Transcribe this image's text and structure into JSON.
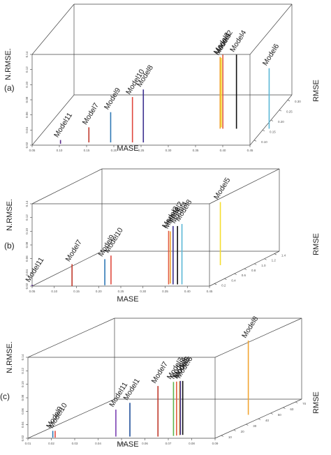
{
  "chart_data": [
    {
      "type": "3d-stem",
      "panel_label": "(a)",
      "xlabel": "MASE",
      "ylabel": "N.RMSE.",
      "zlabel": "RMSE",
      "x_ticks": [
        "0.05",
        "0.10",
        "0.15",
        "0.20",
        "0.25",
        "0.30",
        "0.35",
        "0.40",
        "0.45"
      ],
      "y_ticks": [
        "0.02",
        "0.04",
        "0.06",
        "0.08",
        "0.10",
        "0.12",
        "0.14"
      ],
      "z_ticks": [
        "0.10",
        "0.15",
        "0.20",
        "0.25",
        "0.30"
      ],
      "xlim": [
        0.05,
        0.45
      ],
      "ylim": [
        0.02,
        0.14
      ],
      "zlim": [
        0.08,
        0.3
      ],
      "models": [
        {
          "label": "Model11",
          "mase": 0.1,
          "nrmse": 0.025,
          "rmse": 0.09,
          "color": "#5b2c8a"
        },
        {
          "label": "Model7",
          "mase": 0.15,
          "nrmse": 0.04,
          "rmse": 0.1,
          "color": "#c0392b"
        },
        {
          "label": "Model9",
          "mase": 0.19,
          "nrmse": 0.06,
          "rmse": 0.1,
          "color": "#2e78b5"
        },
        {
          "label": "Model10",
          "mase": 0.23,
          "nrmse": 0.08,
          "rmse": 0.1,
          "color": "#e0483e"
        },
        {
          "label": "Model8",
          "mase": 0.25,
          "nrmse": 0.09,
          "rmse": 0.1,
          "color": "#3b2f8f"
        },
        {
          "label": "Model3",
          "mase": 0.37,
          "nrmse": 0.115,
          "rmse": 0.2,
          "color": "#f2a531"
        },
        {
          "label": "Model2",
          "mase": 0.375,
          "nrmse": 0.118,
          "rmse": 0.2,
          "color": "#e25b3d"
        },
        {
          "label": "Model5",
          "mase": 0.37,
          "nrmse": 0.112,
          "rmse": 0.21,
          "color": "#f5dd2e"
        },
        {
          "label": "Model4",
          "mase": 0.4,
          "nrmse": 0.118,
          "rmse": 0.2,
          "color": "#111111"
        },
        {
          "label": "Model6",
          "mase": 0.46,
          "nrmse": 0.1,
          "rmse": 0.2,
          "color": "#5bb7d6"
        }
      ]
    },
    {
      "type": "3d-stem",
      "panel_label": "(b)",
      "xlabel": "MASE",
      "ylabel": "N.RMSE.",
      "zlabel": "RMSE",
      "x_ticks": [
        "0.05",
        "0.10",
        "0.15",
        "0.20",
        "0.25",
        "0.30",
        "0.35",
        "0.40",
        "0.45"
      ],
      "y_ticks": [
        "0.02",
        "0.04",
        "0.06",
        "0.08",
        "0.10",
        "0.12",
        "0.14"
      ],
      "z_ticks": [
        "0.2",
        "0.4",
        "0.6",
        "0.8",
        "1.0",
        "1.2",
        "1.4"
      ],
      "xlim": [
        0.05,
        0.45
      ],
      "ylim": [
        0.02,
        0.14
      ],
      "zlim": [
        0.2,
        1.4
      ],
      "models": [
        {
          "label": "Model11",
          "mase": 0.05,
          "nrmse": 0.022,
          "rmse": 0.2,
          "color": "#5b2c8a"
        },
        {
          "label": "Model7",
          "mase": 0.14,
          "nrmse": 0.052,
          "rmse": 0.2,
          "color": "#c0392b"
        },
        {
          "label": "Model9",
          "mase": 0.21,
          "nrmse": 0.058,
          "rmse": 0.25,
          "color": "#2e78b5"
        },
        {
          "label": "Model10",
          "mase": 0.22,
          "nrmse": 0.062,
          "rmse": 0.3,
          "color": "#e0483e"
        },
        {
          "label": "Model3",
          "mase": 0.35,
          "nrmse": 0.098,
          "rmse": 0.3,
          "color": "#e25b3d"
        },
        {
          "label": "Model6",
          "mase": 0.35,
          "nrmse": 0.096,
          "rmse": 0.35,
          "color": "#f2a531"
        },
        {
          "label": "Model2",
          "mase": 0.36,
          "nrmse": 0.105,
          "rmse": 0.3,
          "color": "#3b2f8f"
        },
        {
          "label": "Model4",
          "mase": 0.37,
          "nrmse": 0.105,
          "rmse": 0.3,
          "color": "#111111"
        },
        {
          "label": "Model8",
          "mase": 0.38,
          "nrmse": 0.108,
          "rmse": 0.3,
          "color": "#5bb7d6"
        },
        {
          "label": "Model5",
          "mase": 0.38,
          "nrmse": 0.112,
          "rmse": 1.4,
          "color": "#f5dd2e"
        }
      ]
    },
    {
      "type": "3d-stem",
      "panel_label": "(c)",
      "xlabel": "MASE",
      "ylabel": "N.RMSE.",
      "zlabel": "RMSE",
      "x_ticks": [
        "0.01",
        "0.02",
        "0.03",
        "0.04",
        "0.05",
        "0.06",
        "0.07",
        "0.08",
        "0.09"
      ],
      "y_ticks": [
        "0.02",
        "0.04",
        "0.06",
        "0.08",
        "0.10",
        "0.12",
        "0.14"
      ],
      "z_ticks": [
        "10",
        "20",
        "30",
        "40",
        "50",
        "60",
        "70"
      ],
      "xlim": [
        0.01,
        0.09
      ],
      "ylim": [
        0.02,
        0.14
      ],
      "zlim": [
        0,
        70
      ],
      "models": [
        {
          "label": "Model10",
          "mase": 0.021,
          "nrmse": 0.03,
          "rmse": 2,
          "color": "#e0483e"
        },
        {
          "label": "Model9",
          "mase": 0.02,
          "nrmse": 0.03,
          "rmse": 2,
          "color": "#2e78b5"
        },
        {
          "label": "Model11",
          "mase": 0.046,
          "nrmse": 0.06,
          "rmse": 5,
          "color": "#7b3fb3"
        },
        {
          "label": "Model1",
          "mase": 0.052,
          "nrmse": 0.07,
          "rmse": 5,
          "color": "#1f4e9a"
        },
        {
          "label": "Model7",
          "mase": 0.064,
          "nrmse": 0.095,
          "rmse": 5,
          "color": "#c0392b"
        },
        {
          "label": "Model3",
          "mase": 0.07,
          "nrmse": 0.1,
          "rmse": 7,
          "color": "#5fb34a"
        },
        {
          "label": "Model4",
          "mase": 0.071,
          "nrmse": 0.1,
          "rmse": 8,
          "color": "#e25b3d"
        },
        {
          "label": "Model2",
          "mase": 0.072,
          "nrmse": 0.1,
          "rmse": 9,
          "color": "#f2a531"
        },
        {
          "label": "Model5",
          "mase": 0.072,
          "nrmse": 0.1,
          "rmse": 10,
          "color": "#3b2f8f"
        },
        {
          "label": "Model6",
          "mase": 0.073,
          "nrmse": 0.1,
          "rmse": 10,
          "color": "#111111"
        },
        {
          "label": "Model8",
          "mase": 0.082,
          "nrmse": 0.13,
          "rmse": 70,
          "color": "#f2a531"
        }
      ]
    }
  ]
}
